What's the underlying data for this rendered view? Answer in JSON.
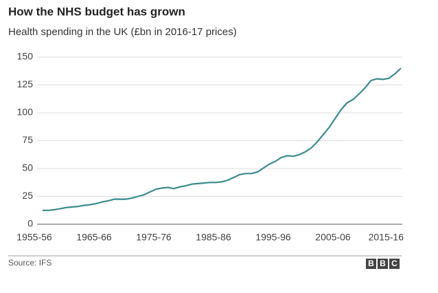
{
  "chart_data": {
    "type": "line",
    "title": "How the NHS budget has grown",
    "subtitle": "Health spending in the UK (£bn in 2016-17 prices)",
    "source": "Source: IFS",
    "logo": [
      "B",
      "B",
      "C"
    ],
    "categories": [
      "1955-56",
      null,
      null,
      null,
      null,
      null,
      null,
      null,
      null,
      null,
      "1965-66",
      null,
      null,
      null,
      null,
      null,
      null,
      null,
      null,
      null,
      "1975-76",
      null,
      null,
      null,
      null,
      null,
      null,
      null,
      null,
      null,
      "1985-86",
      null,
      null,
      null,
      null,
      null,
      null,
      null,
      null,
      null,
      "1995-96",
      null,
      null,
      null,
      null,
      null,
      null,
      null,
      null,
      null,
      "2005-06",
      null,
      null,
      null,
      null,
      null,
      null,
      null,
      null,
      null,
      "2015-16"
    ],
    "series": [
      {
        "name": "Health spending",
        "color": "#3a8a8a",
        "values": [
          12.5,
          12.5,
          13,
          14,
          15,
          15.5,
          16,
          17,
          17.5,
          18.5,
          20,
          21,
          22.5,
          22.5,
          22.5,
          23.5,
          25,
          26.5,
          29,
          31.5,
          32.5,
          33,
          32,
          33.5,
          34.5,
          36,
          36.5,
          37,
          37.5,
          37.5,
          38,
          39.5,
          42,
          44.5,
          45.5,
          45.5,
          47,
          50.5,
          54,
          56.5,
          60,
          61.5,
          61,
          62.5,
          65,
          68.5,
          74,
          80.5,
          87,
          95,
          103,
          109,
          112,
          117,
          122.5,
          129,
          130.5,
          130,
          131,
          135,
          140
        ]
      }
    ],
    "ylim": [
      0,
      150
    ],
    "yticks": [
      0,
      25,
      50,
      75,
      100,
      125,
      150
    ],
    "grid": true
  }
}
